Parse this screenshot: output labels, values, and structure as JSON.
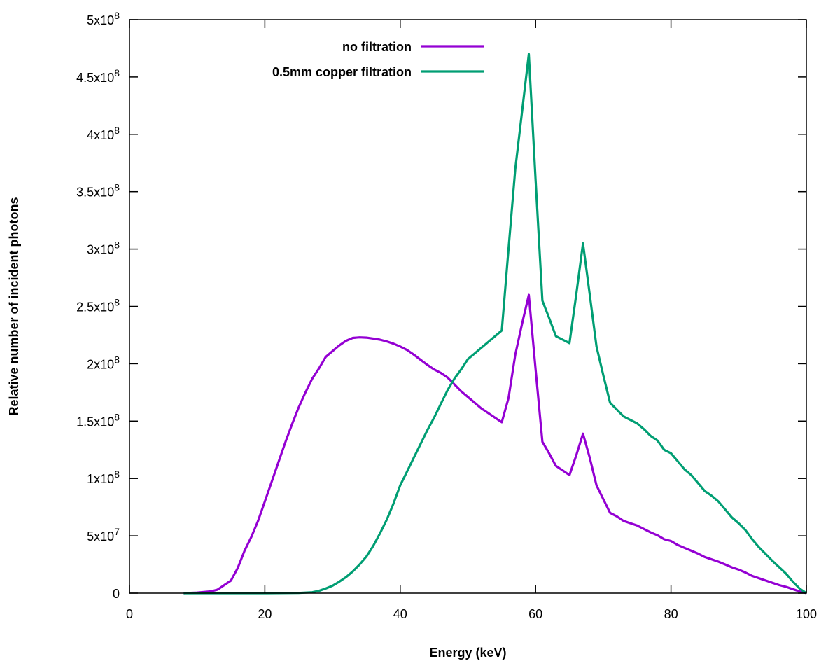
{
  "chart_data": {
    "type": "line",
    "title": "",
    "xlabel": "Energy (keV)",
    "ylabel": "Relative number of incident photons",
    "xlim": [
      0,
      100
    ],
    "ylim": [
      0,
      500000000
    ],
    "grid": false,
    "legend_position": "top-center",
    "x_ticks": [
      {
        "value": 0,
        "label": "0"
      },
      {
        "value": 20,
        "label": "20"
      },
      {
        "value": 40,
        "label": "40"
      },
      {
        "value": 60,
        "label": "60"
      },
      {
        "value": 80,
        "label": "80"
      },
      {
        "value": 100,
        "label": "100"
      }
    ],
    "y_ticks": [
      {
        "value": 0,
        "mant": "0",
        "exp": ""
      },
      {
        "value": 50000000,
        "mant": "5x10",
        "exp": "7"
      },
      {
        "value": 100000000,
        "mant": "1x10",
        "exp": "8"
      },
      {
        "value": 150000000,
        "mant": "1.5x10",
        "exp": "8"
      },
      {
        "value": 200000000,
        "mant": "2x10",
        "exp": "8"
      },
      {
        "value": 250000000,
        "mant": "2.5x10",
        "exp": "8"
      },
      {
        "value": 300000000,
        "mant": "3x10",
        "exp": "8"
      },
      {
        "value": 350000000,
        "mant": "3.5x10",
        "exp": "8"
      },
      {
        "value": 400000000,
        "mant": "4x10",
        "exp": "8"
      },
      {
        "value": 450000000,
        "mant": "4.5x10",
        "exp": "8"
      },
      {
        "value": 500000000,
        "mant": "5x10",
        "exp": "8"
      }
    ],
    "series": [
      {
        "name": "no filtration",
        "color": "#9400d3",
        "points": [
          [
            8,
            0
          ],
          [
            10,
            500000
          ],
          [
            12,
            1500000
          ],
          [
            13,
            3000000
          ],
          [
            14,
            7000000
          ],
          [
            15,
            11000000
          ],
          [
            16,
            22000000
          ],
          [
            17,
            37000000
          ],
          [
            18,
            49000000
          ],
          [
            19,
            63000000
          ],
          [
            20,
            80000000
          ],
          [
            21,
            97000000
          ],
          [
            22,
            114000000
          ],
          [
            23,
            131000000
          ],
          [
            24,
            147000000
          ],
          [
            25,
            162000000
          ],
          [
            26,
            175000000
          ],
          [
            27,
            187000000
          ],
          [
            28,
            196000000
          ],
          [
            29,
            206000000
          ],
          [
            30,
            211000000
          ],
          [
            31,
            216000000
          ],
          [
            32,
            220000000
          ],
          [
            33,
            222500000
          ],
          [
            34,
            223000000
          ],
          [
            35,
            222800000
          ],
          [
            36,
            222000000
          ],
          [
            37,
            221000000
          ],
          [
            38,
            219500000
          ],
          [
            39,
            217500000
          ],
          [
            40,
            215000000
          ],
          [
            41,
            212000000
          ],
          [
            42,
            208000000
          ],
          [
            43,
            203500000
          ],
          [
            44,
            199000000
          ],
          [
            45,
            195000000
          ],
          [
            46,
            192000000
          ],
          [
            47,
            188000000
          ],
          [
            48,
            182000000
          ],
          [
            49,
            176000000
          ],
          [
            50,
            171000000
          ],
          [
            51,
            166000000
          ],
          [
            52,
            161000000
          ],
          [
            53,
            157000000
          ],
          [
            54,
            153000000
          ],
          [
            55,
            149000000
          ],
          [
            56,
            170000000
          ],
          [
            57,
            208000000
          ],
          [
            58,
            235000000
          ],
          [
            59,
            260000000
          ],
          [
            60,
            195000000
          ],
          [
            61,
            132000000
          ],
          [
            62,
            122000000
          ],
          [
            63,
            111000000
          ],
          [
            64,
            107000000
          ],
          [
            65,
            103000000
          ],
          [
            66,
            120000000
          ],
          [
            67,
            139000000
          ],
          [
            68,
            118000000
          ],
          [
            69,
            94000000
          ],
          [
            70,
            82000000
          ],
          [
            71,
            70000000
          ],
          [
            72,
            67000000
          ],
          [
            73,
            63000000
          ],
          [
            74,
            61000000
          ],
          [
            75,
            59000000
          ],
          [
            76,
            56000000
          ],
          [
            77,
            53000000
          ],
          [
            78,
            50500000
          ],
          [
            79,
            47000000
          ],
          [
            80,
            45500000
          ],
          [
            81,
            42000000
          ],
          [
            82,
            39500000
          ],
          [
            83,
            37000000
          ],
          [
            84,
            34500000
          ],
          [
            85,
            31500000
          ],
          [
            86,
            29500000
          ],
          [
            87,
            27500000
          ],
          [
            88,
            25000000
          ],
          [
            89,
            22500000
          ],
          [
            90,
            20500000
          ],
          [
            91,
            18000000
          ],
          [
            92,
            15000000
          ],
          [
            93,
            13000000
          ],
          [
            94,
            11000000
          ],
          [
            95,
            9000000
          ],
          [
            96,
            7000000
          ],
          [
            97,
            5500000
          ],
          [
            98,
            3500000
          ],
          [
            99,
            1500000
          ],
          [
            100,
            0
          ]
        ]
      },
      {
        "name": "0.5mm copper filtration",
        "color": "#009e73",
        "points": [
          [
            8,
            0
          ],
          [
            20,
            0
          ],
          [
            25,
            200000
          ],
          [
            27,
            800000
          ],
          [
            28,
            2000000
          ],
          [
            29,
            4000000
          ],
          [
            30,
            6500000
          ],
          [
            31,
            10000000
          ],
          [
            32,
            14000000
          ],
          [
            33,
            19000000
          ],
          [
            34,
            25000000
          ],
          [
            35,
            32000000
          ],
          [
            36,
            41000000
          ],
          [
            37,
            52000000
          ],
          [
            38,
            64000000
          ],
          [
            39,
            78000000
          ],
          [
            40,
            94000000
          ],
          [
            41,
            106000000
          ],
          [
            42,
            118000000
          ],
          [
            43,
            130000000
          ],
          [
            44,
            142000000
          ],
          [
            45,
            153000000
          ],
          [
            46,
            165000000
          ],
          [
            47,
            177000000
          ],
          [
            48,
            187000000
          ],
          [
            49,
            195000000
          ],
          [
            50,
            204000000
          ],
          [
            51,
            209000000
          ],
          [
            52,
            214000000
          ],
          [
            53,
            219000000
          ],
          [
            54,
            224000000
          ],
          [
            55,
            229000000
          ],
          [
            56,
            300000000
          ],
          [
            57,
            370000000
          ],
          [
            58,
            420000000
          ],
          [
            59,
            470000000
          ],
          [
            60,
            360000000
          ],
          [
            61,
            255000000
          ],
          [
            62,
            240000000
          ],
          [
            63,
            224000000
          ],
          [
            64,
            221000000
          ],
          [
            65,
            218000000
          ],
          [
            66,
            260000000
          ],
          [
            67,
            305000000
          ],
          [
            68,
            260000000
          ],
          [
            69,
            215000000
          ],
          [
            70,
            190000000
          ],
          [
            71,
            166000000
          ],
          [
            72,
            160000000
          ],
          [
            73,
            154000000
          ],
          [
            74,
            151000000
          ],
          [
            75,
            148000000
          ],
          [
            76,
            143000000
          ],
          [
            77,
            137000000
          ],
          [
            78,
            133000000
          ],
          [
            79,
            125000000
          ],
          [
            80,
            122000000
          ],
          [
            81,
            115000000
          ],
          [
            82,
            108000000
          ],
          [
            83,
            103000000
          ],
          [
            84,
            96000000
          ],
          [
            85,
            89000000
          ],
          [
            86,
            85000000
          ],
          [
            87,
            80000000
          ],
          [
            88,
            73000000
          ],
          [
            89,
            66000000
          ],
          [
            90,
            61000000
          ],
          [
            91,
            55000000
          ],
          [
            92,
            47000000
          ],
          [
            93,
            40000000
          ],
          [
            94,
            34000000
          ],
          [
            95,
            28000000
          ],
          [
            96,
            22500000
          ],
          [
            97,
            17000000
          ],
          [
            98,
            10000000
          ],
          [
            99,
            4000000
          ],
          [
            100,
            0
          ]
        ]
      }
    ]
  }
}
